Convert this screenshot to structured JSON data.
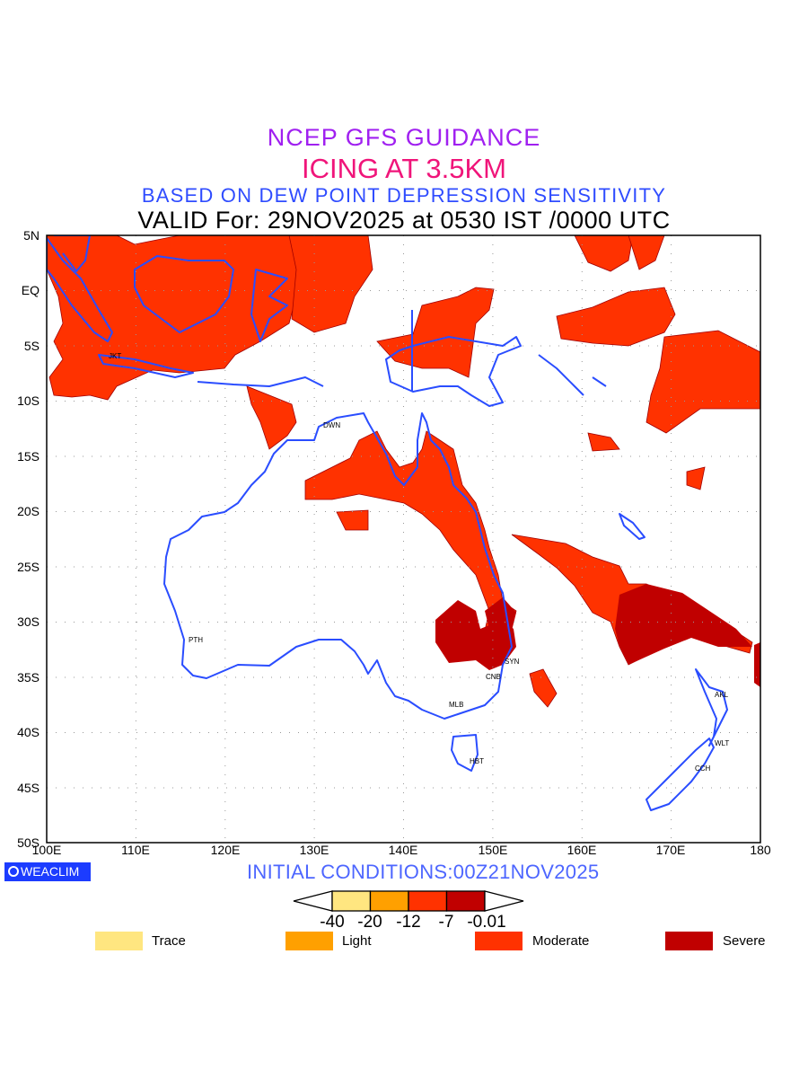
{
  "titles": {
    "line1": "NCEP GFS GUIDANCE",
    "line2": "ICING AT 3.5KM",
    "line3": "BASED ON DEW POINT DEPRESSION SENSITIVITY",
    "line4": "VALID For: 29NOV2025 at 0530 IST /0000 UTC"
  },
  "axes": {
    "lat_labels": [
      "5N",
      "EQ",
      "5S",
      "10S",
      "15S",
      "20S",
      "25S",
      "30S",
      "35S",
      "40S",
      "45S",
      "50S"
    ],
    "lon_labels": [
      "100E",
      "110E",
      "120E",
      "130E",
      "140E",
      "150E",
      "160E",
      "170E",
      "180"
    ]
  },
  "cities": [
    "JKT",
    "DWN",
    "PTH",
    "SYN",
    "CNB",
    "MLB",
    "HBT",
    "AKL",
    "WLT",
    "CCH"
  ],
  "footer": {
    "logo": "WEACLIM",
    "initial_conditions": "INITIAL CONDITIONS:00Z21NOV2025"
  },
  "colorbar": {
    "ticks": [
      "-40",
      "-20",
      "-12",
      "-7",
      "-0.01"
    ],
    "colors": [
      "#ffe680",
      "#ffa000",
      "#ff3200",
      "#c00000"
    ]
  },
  "legend": [
    {
      "label": "Trace",
      "color": "#ffe680"
    },
    {
      "label": "Light",
      "color": "#ffa000"
    },
    {
      "label": "Moderate",
      "color": "#ff3200"
    },
    {
      "label": "Severe",
      "color": "#c00000"
    }
  ],
  "colors": {
    "coast": "#2a4dff",
    "moderate": "#ff3200",
    "severe": "#c00000"
  }
}
